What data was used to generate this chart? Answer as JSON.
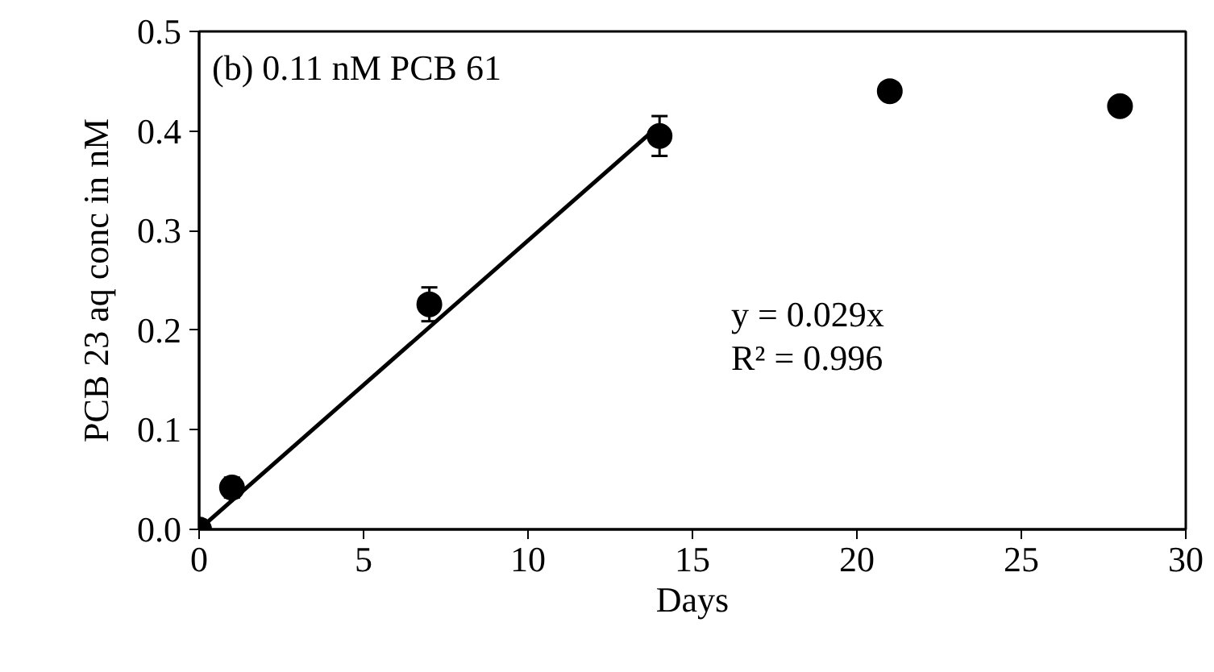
{
  "chart_data": {
    "type": "scatter",
    "xlabel": "Days",
    "ylabel": "PCB 23 aq conc in nM",
    "xlim": [
      0,
      30
    ],
    "xticks": [
      0,
      5,
      10,
      15,
      20,
      25,
      30
    ],
    "ylim": [
      0,
      0.5
    ],
    "yticks": [
      {
        "value": 0,
        "label": "0.0"
      },
      0.1,
      0.2,
      0.3,
      0.4,
      0.5
    ],
    "grid": false,
    "series": [
      {
        "color": "#000000",
        "marker": "circle",
        "x": [
          0,
          1,
          7,
          14,
          21,
          28
        ],
        "values": [
          0,
          0.042,
          0.226,
          0.395,
          0.44,
          0.425
        ],
        "errors": [
          null,
          0.01,
          0.017,
          0.02,
          null,
          null
        ]
      },
      {
        "type": "line",
        "marker": "none",
        "color": "#000000",
        "x": [
          0,
          14
        ],
        "values": [
          0,
          0.406
        ]
      }
    ],
    "annotations": [
      "(b) 0.11 nM PCB 61",
      "y = 0.029x",
      "R² = 0.996"
    ]
  }
}
